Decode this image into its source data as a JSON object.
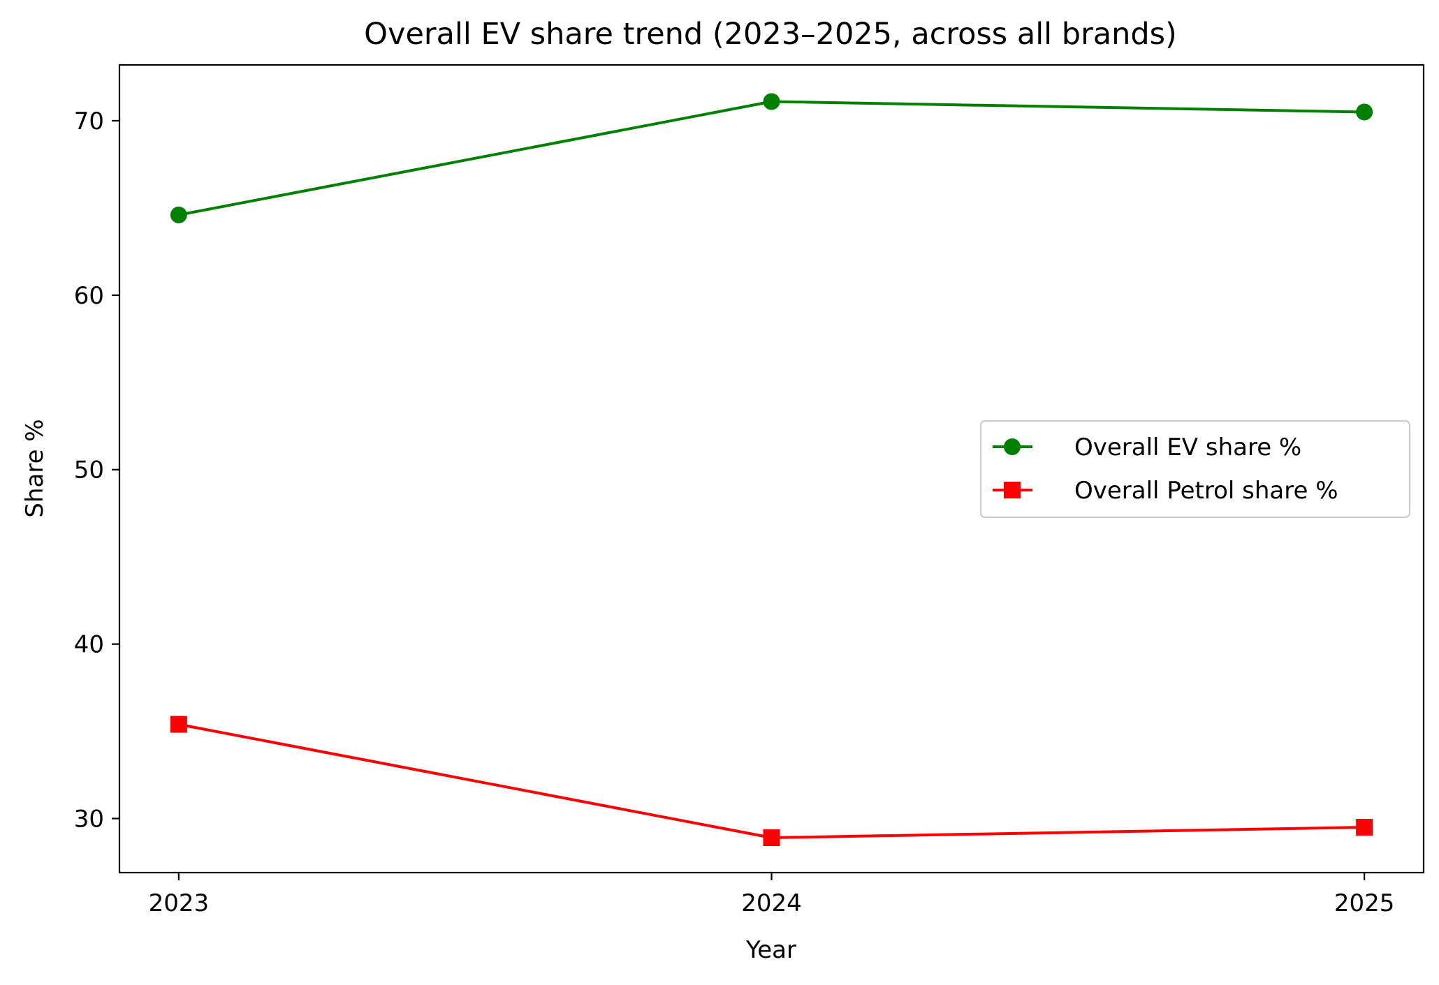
{
  "chart_data": {
    "type": "line",
    "title": "Overall EV share trend (2023–2025, across all brands)",
    "xlabel": "Year",
    "ylabel": "Share %",
    "x": [
      2023,
      2024,
      2025
    ],
    "x_tick_labels": [
      "2023",
      "2024",
      "2025"
    ],
    "y_ticks": [
      30,
      40,
      50,
      60,
      70
    ],
    "xlim": [
      2022.9,
      2025.1
    ],
    "ylim": [
      26.9,
      73.2
    ],
    "grid": false,
    "legend_position": "center-right",
    "series": [
      {
        "name": "Overall EV share %",
        "values": [
          64.6,
          71.1,
          70.5
        ],
        "color": "#008000",
        "marker": "circle"
      },
      {
        "name": "Overall Petrol share %",
        "values": [
          35.4,
          28.9,
          29.5
        ],
        "color": "#ff0000",
        "marker": "square"
      }
    ]
  }
}
